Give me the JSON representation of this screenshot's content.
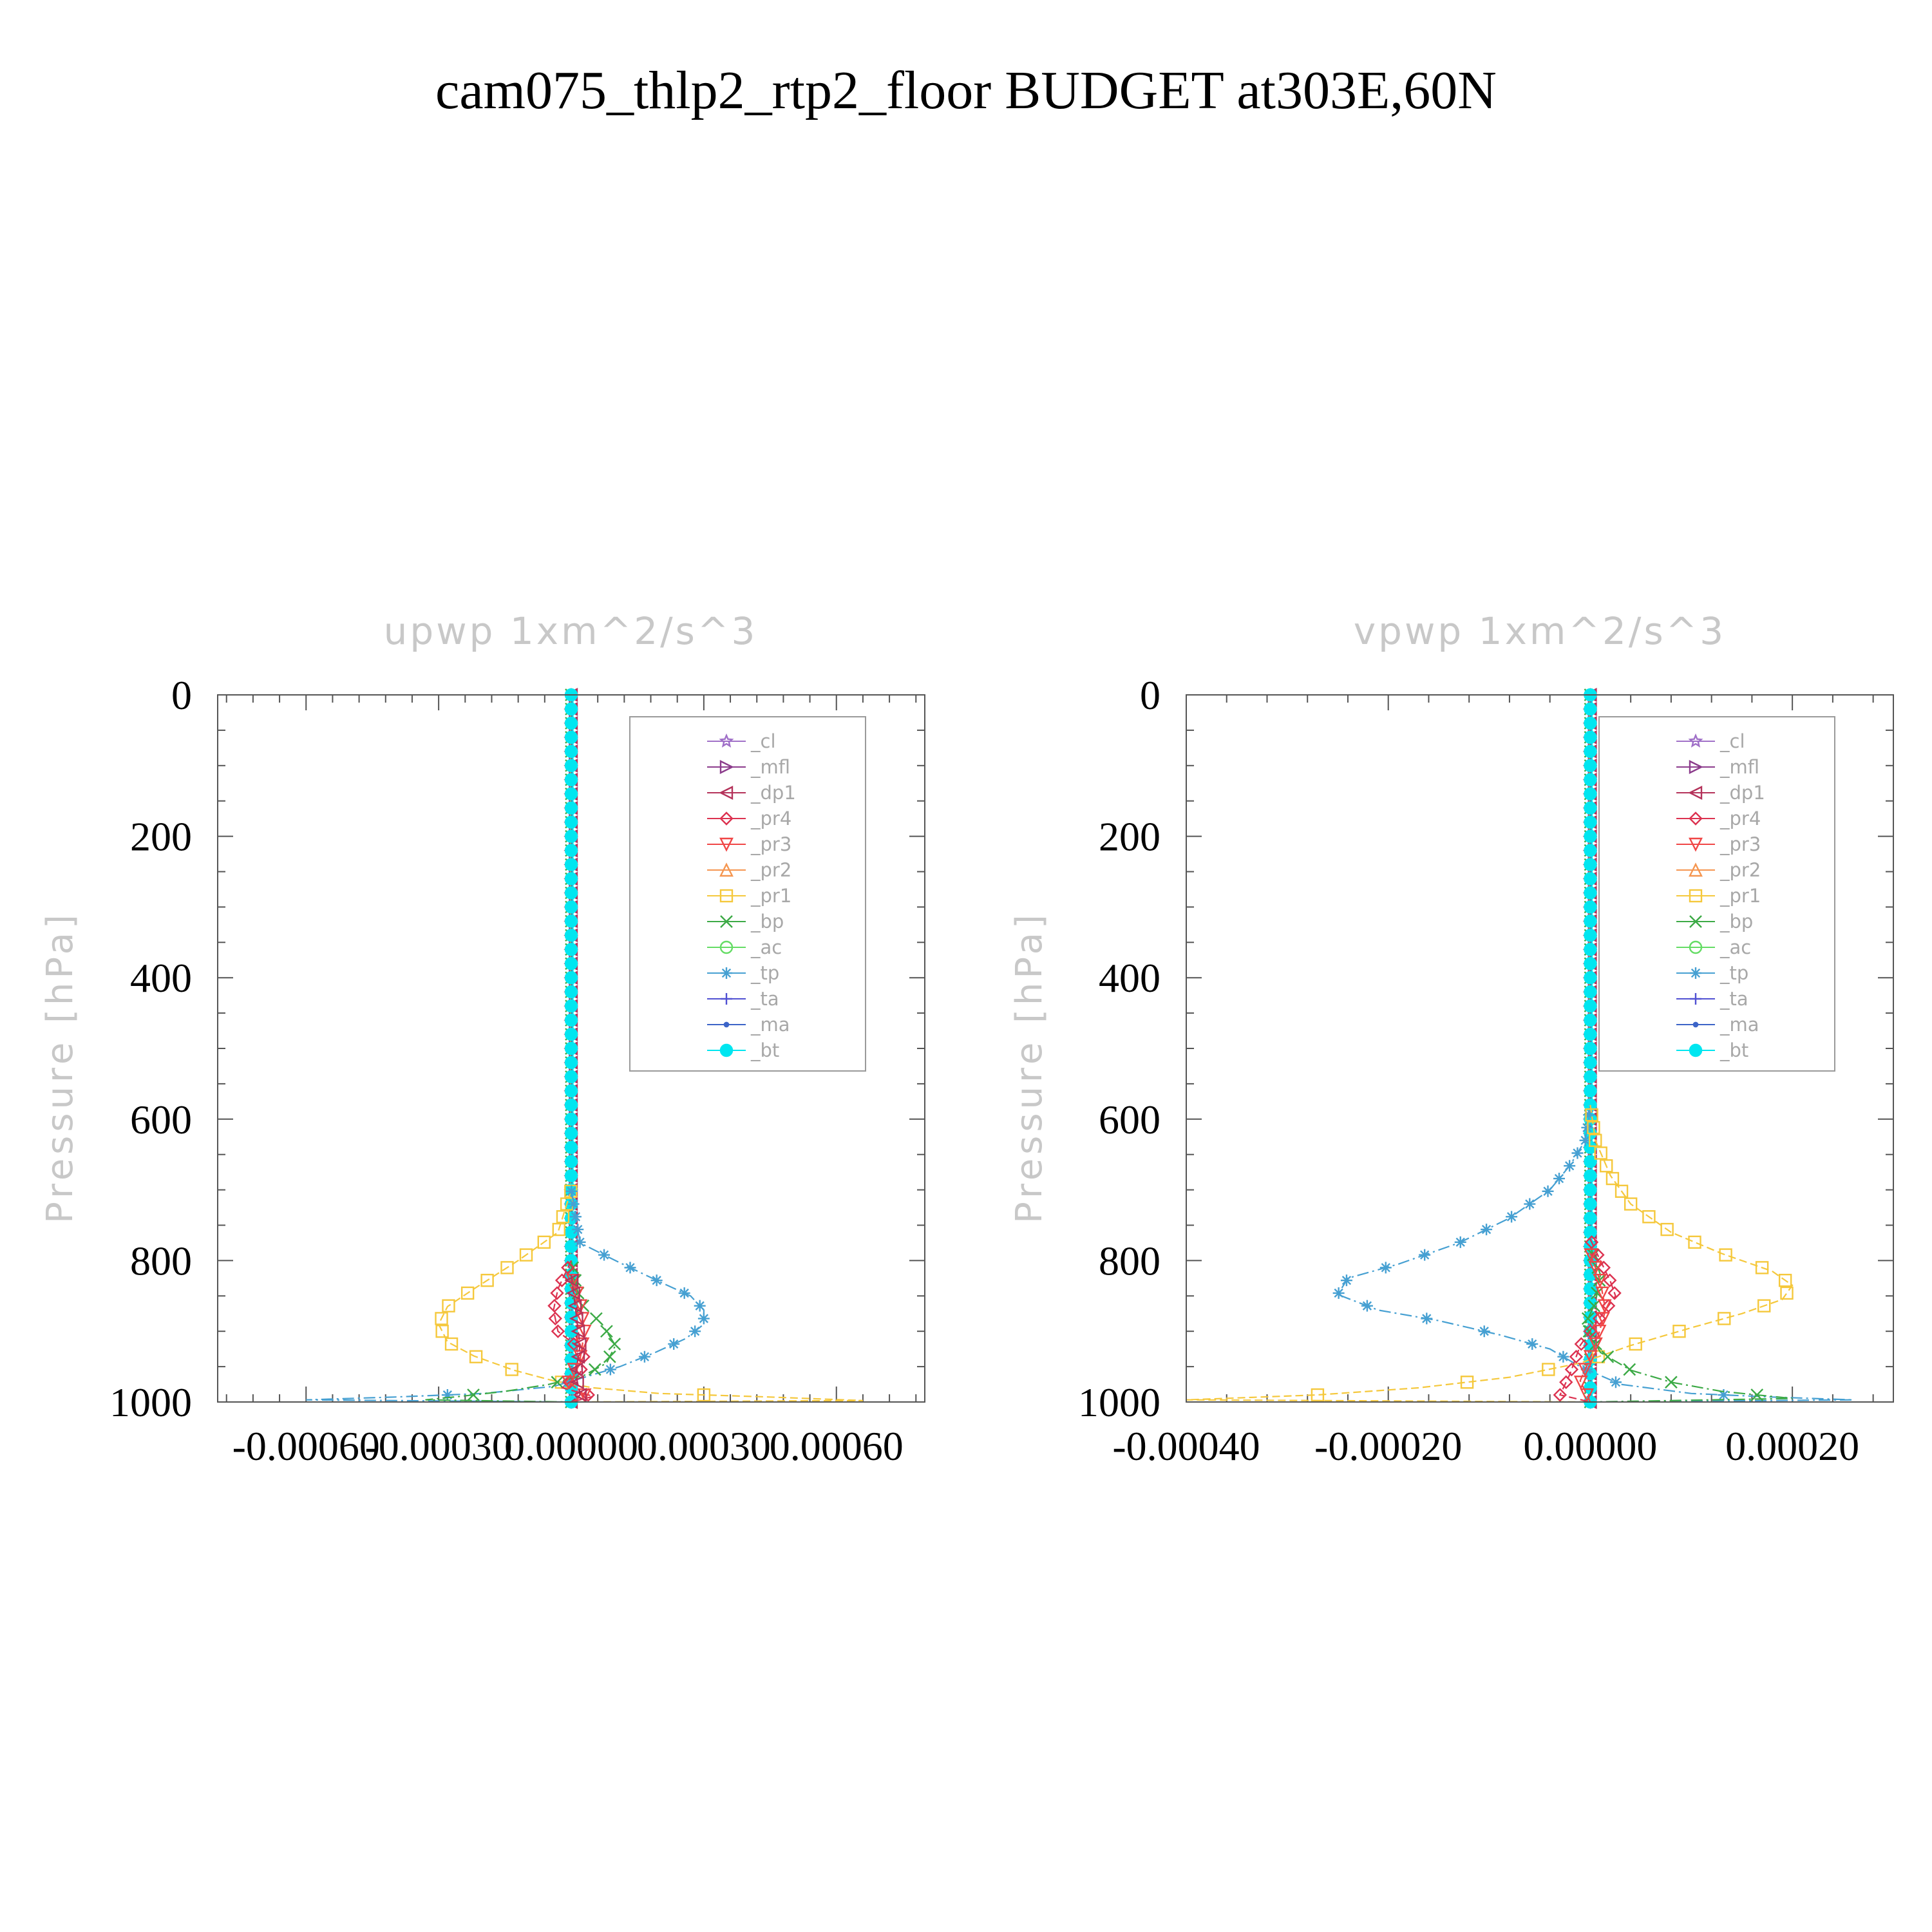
{
  "figure_title": "cam075_thlp2_rtp2_floor  BUDGET at303E,60N",
  "legend_entries": [
    {
      "label": "_cl",
      "color": "#a070c8",
      "marker": "star"
    },
    {
      "label": "_mfl",
      "color": "#8c3c8c",
      "marker": "tri-right"
    },
    {
      "label": "_dp1",
      "color": "#b4325a",
      "marker": "tri-left"
    },
    {
      "label": "_pr4",
      "color": "#dc3250",
      "marker": "diamond"
    },
    {
      "label": "_pr3",
      "color": "#f04646",
      "marker": "tri-down"
    },
    {
      "label": "_pr2",
      "color": "#f59650",
      "marker": "tri-up"
    },
    {
      "label": "_pr1",
      "color": "#f5c83c",
      "marker": "square"
    },
    {
      "label": "_bp",
      "color": "#3caa46",
      "marker": "x"
    },
    {
      "label": "_ac",
      "color": "#64dc64",
      "marker": "circle"
    },
    {
      "label": "_tp",
      "color": "#46a0d2",
      "marker": "asterisk"
    },
    {
      "label": "_ta",
      "color": "#5050d2",
      "marker": "plus"
    },
    {
      "label": "_ma",
      "color": "#3c64c8",
      "marker": "dot"
    },
    {
      "label": "_bt",
      "color": "#00e6f0",
      "marker": "filled-circle"
    }
  ],
  "chart_data": [
    {
      "type": "line",
      "title": "upwp    1xm^2/s^3",
      "xlabel": "",
      "ylabel": "Pressure [hPa]",
      "xlim": [
        -0.0008,
        0.0008
      ],
      "ylim": [
        1000,
        0
      ],
      "x_ticks": [
        -0.0006,
        -0.0003,
        0.0,
        0.0003,
        0.0006
      ],
      "x_tick_labels": [
        "-0.00060",
        "-0.00030",
        "0.00000",
        "0.00030",
        "0.00060"
      ],
      "y_ticks": [
        0,
        200,
        400,
        600,
        800,
        1000
      ],
      "y_tick_labels": [
        "0",
        "200",
        "400",
        "600",
        "800",
        "1000"
      ],
      "legend_position": "top-right",
      "series": [
        {
          "name": "_pr1",
          "points": [
            [
              0,
              700
            ],
            [
              -3e-05,
              760
            ],
            [
              -0.00012,
              800
            ],
            [
              -0.00022,
              840
            ],
            [
              -0.00028,
              865
            ],
            [
              -0.0003,
              890
            ],
            [
              -0.00028,
              915
            ],
            [
              -0.00022,
              935
            ],
            [
              -0.00013,
              955
            ],
            [
              -4e-05,
              970
            ],
            [
              5e-05,
              980
            ],
            [
              0.0002,
              988
            ],
            [
              0.00045,
              993
            ],
            [
              0.00066,
              998
            ],
            [
              0,
              1000
            ]
          ]
        },
        {
          "name": "_tp",
          "points": [
            [
              0,
              700
            ],
            [
              2e-05,
              775
            ],
            [
              0.0001,
              800
            ],
            [
              0.0002,
              830
            ],
            [
              0.00027,
              850
            ],
            [
              0.0003,
              870
            ],
            [
              0.0003,
              890
            ],
            [
              0.00026,
              910
            ],
            [
              0.00019,
              930
            ],
            [
              0.00011,
              950
            ],
            [
              3e-05,
              965
            ],
            [
              -4e-05,
              978
            ],
            [
              -0.0002,
              988
            ],
            [
              -0.0004,
              993
            ],
            [
              -0.0006,
              997
            ],
            [
              0,
              1000
            ]
          ]
        },
        {
          "name": "_bp",
          "points": [
            [
              0,
              800
            ],
            [
              2e-05,
              860
            ],
            [
              7e-05,
              890
            ],
            [
              0.0001,
              920
            ],
            [
              8e-05,
              945
            ],
            [
              3e-05,
              962
            ],
            [
              -5e-05,
              975
            ],
            [
              -0.00015,
              985
            ],
            [
              -0.00025,
              992
            ],
            [
              -0.00033,
              997
            ],
            [
              0,
              1000
            ]
          ]
        },
        {
          "name": "_pr4",
          "points": [
            [
              0,
              800
            ],
            [
              -3e-05,
              840
            ],
            [
              -4e-05,
              870
            ],
            [
              -3e-05,
              900
            ],
            [
              3e-05,
              930
            ],
            [
              2e-05,
              960
            ],
            [
              -2e-05,
              980
            ],
            [
              5e-05,
              992
            ],
            [
              0,
              1000
            ]
          ]
        },
        {
          "name": "_pr3",
          "points": [
            [
              0,
              820
            ],
            [
              2e-05,
              860
            ],
            [
              3e-05,
              900
            ],
            [
              2e-05,
              940
            ],
            [
              -1e-05,
              970
            ],
            [
              3e-05,
              990
            ],
            [
              0,
              1000
            ]
          ]
        },
        {
          "name": "_dp1",
          "points": [
            [
              0,
              820
            ],
            [
              1e-05,
              870
            ],
            [
              2e-05,
              920
            ],
            [
              1e-05,
              960
            ],
            [
              2e-05,
              990
            ],
            [
              0,
              1000
            ]
          ]
        },
        {
          "name": "_bt",
          "points": [
            [
              0,
              0
            ],
            [
              0,
              1000
            ]
          ]
        }
      ]
    },
    {
      "type": "line",
      "title": "vpwp    1xm^2/s^3",
      "xlabel": "",
      "ylabel": "Pressure [hPa]",
      "xlim": [
        -0.0004,
        0.0003
      ],
      "ylim": [
        1000,
        0
      ],
      "x_ticks": [
        -0.0004,
        -0.0002,
        0.0,
        0.0002
      ],
      "x_tick_labels": [
        "-0.00040",
        "-0.00020",
        "0.00000",
        "0.00020"
      ],
      "y_ticks": [
        0,
        200,
        400,
        600,
        800,
        1000
      ],
      "y_tick_labels": [
        "0",
        "200",
        "400",
        "600",
        "800",
        "1000"
      ],
      "legend_position": "top-right",
      "series": [
        {
          "name": "_tp",
          "points": [
            [
              0,
              580
            ],
            [
              -5e-06,
              630
            ],
            [
              -2e-05,
              665
            ],
            [
              -4e-05,
              700
            ],
            [
              -8e-05,
              740
            ],
            [
              -0.00013,
              775
            ],
            [
              -0.00019,
              805
            ],
            [
              -0.00024,
              825
            ],
            [
              -0.00025,
              848
            ],
            [
              -0.00021,
              870
            ],
            [
              -0.00015,
              885
            ],
            [
              -9e-05,
              905
            ],
            [
              -4e-05,
              925
            ],
            [
              -1e-05,
              950
            ],
            [
              3e-05,
              975
            ],
            [
              0.0001,
              988
            ],
            [
              0.00018,
              993
            ],
            [
              0.00026,
              997
            ],
            [
              0,
              1000
            ]
          ]
        },
        {
          "name": "_pr1",
          "points": [
            [
              0,
              580
            ],
            [
              5e-06,
              630
            ],
            [
              2e-05,
              680
            ],
            [
              4e-05,
              720
            ],
            [
              8e-05,
              760
            ],
            [
              0.00013,
              790
            ],
            [
              0.00018,
              815
            ],
            [
              0.0002,
              835
            ],
            [
              0.00019,
              855
            ],
            [
              0.00015,
              875
            ],
            [
              0.0001,
              895
            ],
            [
              4e-05,
              920
            ],
            [
              -1e-05,
              945
            ],
            [
              -8e-05,
              965
            ],
            [
              -0.00017,
              980
            ],
            [
              -0.00027,
              990
            ],
            [
              -0.0004,
              997
            ],
            [
              0,
              1000
            ]
          ]
        },
        {
          "name": "_bp",
          "points": [
            [
              0,
              780
            ],
            [
              1e-05,
              820
            ],
            [
              5e-06,
              860
            ],
            [
              -5e-06,
              890
            ],
            [
              1e-05,
              930
            ],
            [
              4e-05,
              955
            ],
            [
              8e-05,
              972
            ],
            [
              0.00013,
              985
            ],
            [
              0.0002,
              995
            ],
            [
              0,
              1000
            ]
          ]
        },
        {
          "name": "_pr4",
          "points": [
            [
              0,
              770
            ],
            [
              1e-05,
              800
            ],
            [
              2e-05,
              830
            ],
            [
              2.5e-05,
              850
            ],
            [
              1e-05,
              880
            ],
            [
              -1e-05,
              920
            ],
            [
              -2e-05,
              960
            ],
            [
              -3e-05,
              990
            ],
            [
              0,
              1000
            ]
          ]
        },
        {
          "name": "_pr3",
          "points": [
            [
              0,
              790
            ],
            [
              1e-05,
              830
            ],
            [
              1.5e-05,
              870
            ],
            [
              5e-06,
              920
            ],
            [
              -1e-05,
              970
            ],
            [
              0,
              1000
            ]
          ]
        },
        {
          "name": "_bt",
          "points": [
            [
              0,
              0
            ],
            [
              0,
              1000
            ]
          ]
        }
      ]
    }
  ]
}
